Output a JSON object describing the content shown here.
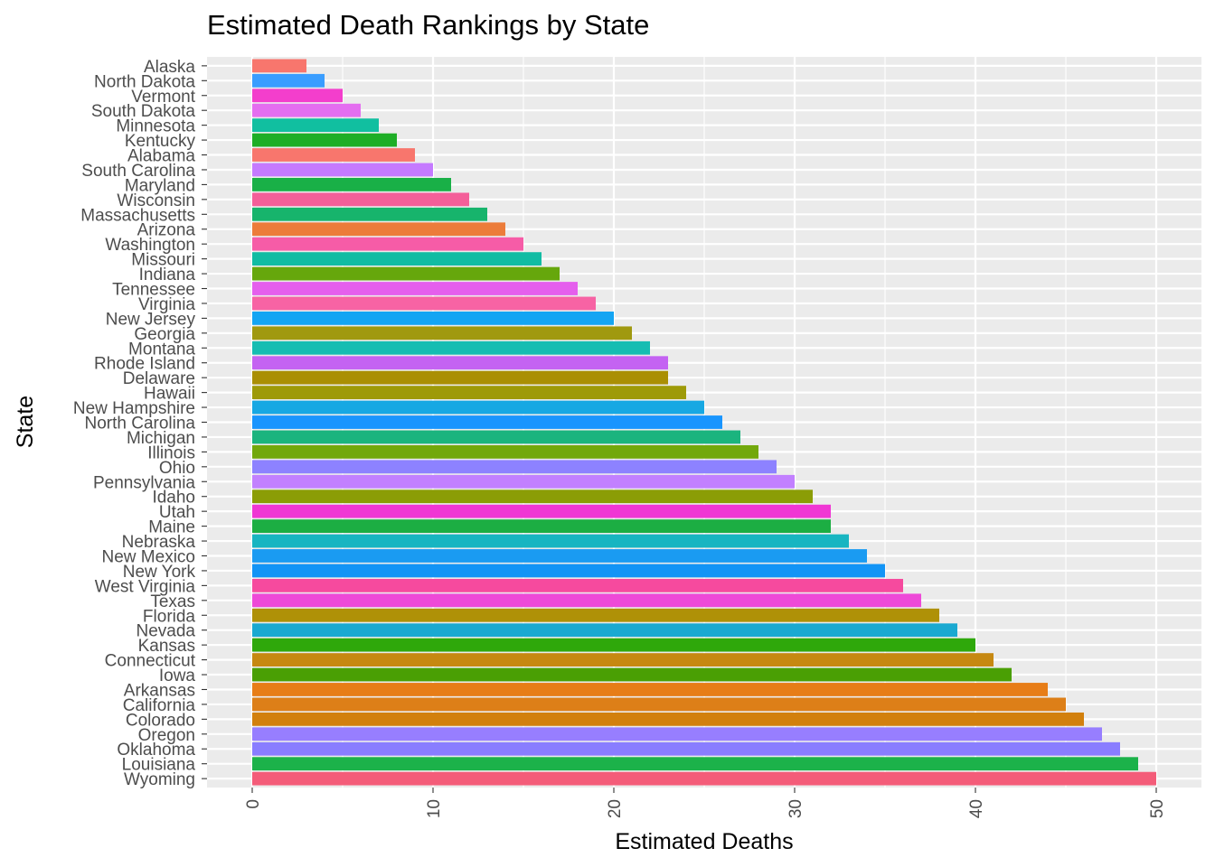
{
  "chart_data": {
    "type": "bar",
    "orientation": "horizontal",
    "title": "Estimated Death Rankings by State",
    "xlabel": "Estimated Deaths",
    "ylabel": "State",
    "xlim": [
      -2.5,
      52.5
    ],
    "xticks": [
      "0",
      "10",
      "20",
      "30",
      "40",
      "50"
    ],
    "grid": true,
    "legend": "none",
    "panel_background": "#ebebeb",
    "categories": [
      "Alaska",
      "North Dakota",
      "Vermont",
      "South Dakota",
      "Minnesota",
      "Kentucky",
      "Alabama",
      "South Carolina",
      "Maryland",
      "Wisconsin",
      "Massachusetts",
      "Arizona",
      "Washington",
      "Missouri",
      "Indiana",
      "Tennessee",
      "Virginia",
      "New Jersey",
      "Georgia",
      "Montana",
      "Rhode Island",
      "Delaware",
      "Hawaii",
      "New Hampshire",
      "North Carolina",
      "Michigan",
      "Illinois",
      "Ohio",
      "Pennsylvania",
      "Idaho",
      "Utah",
      "Maine",
      "Nebraska",
      "New Mexico",
      "New York",
      "West Virginia",
      "Texas",
      "Florida",
      "Nevada",
      "Kansas",
      "Connecticut",
      "Iowa",
      "Arkansas",
      "California",
      "Colorado",
      "Oregon",
      "Oklahoma",
      "Louisiana",
      "Wyoming"
    ],
    "values": [
      3,
      4,
      5,
      6,
      7,
      8,
      9,
      10,
      11,
      12,
      13,
      14,
      15,
      16,
      17,
      18,
      19,
      20,
      21,
      22,
      23,
      23,
      24,
      25,
      26,
      27,
      28,
      29,
      30,
      31,
      32,
      32,
      33,
      34,
      35,
      36,
      37,
      38,
      39,
      40,
      41,
      42,
      44,
      45,
      46,
      47,
      48,
      49,
      50
    ],
    "colors": [
      "#F8766D",
      "#3A9DFF",
      "#F33ECC",
      "#E46EF0",
      "#11BFA0",
      "#1EAE26",
      "#F8766D",
      "#C57AFF",
      "#19B047",
      "#F45F99",
      "#17B46C",
      "#EC7C3A",
      "#F65CA7",
      "#11BCA3",
      "#66A70C",
      "#E55FED",
      "#F763A4",
      "#14A5F3",
      "#A0990F",
      "#15BDB2",
      "#C463F2",
      "#AA8F04",
      "#9E9A08",
      "#17A8E3",
      "#1995FE",
      "#1BB47E",
      "#72A80C",
      "#8D82FF",
      "#C280FF",
      "#8B9D06",
      "#F037D4",
      "#1CAE43",
      "#18B5C1",
      "#1A9BF2",
      "#1294F6",
      "#F64A9E",
      "#EE49D8",
      "#AF9107",
      "#1AA9D1",
      "#2FA80B",
      "#C68811",
      "#4A9F04",
      "#E77D17",
      "#DD7F18",
      "#D2800D",
      "#977EFF",
      "#897DFF",
      "#1CB24A",
      "#F45C79"
    ]
  }
}
